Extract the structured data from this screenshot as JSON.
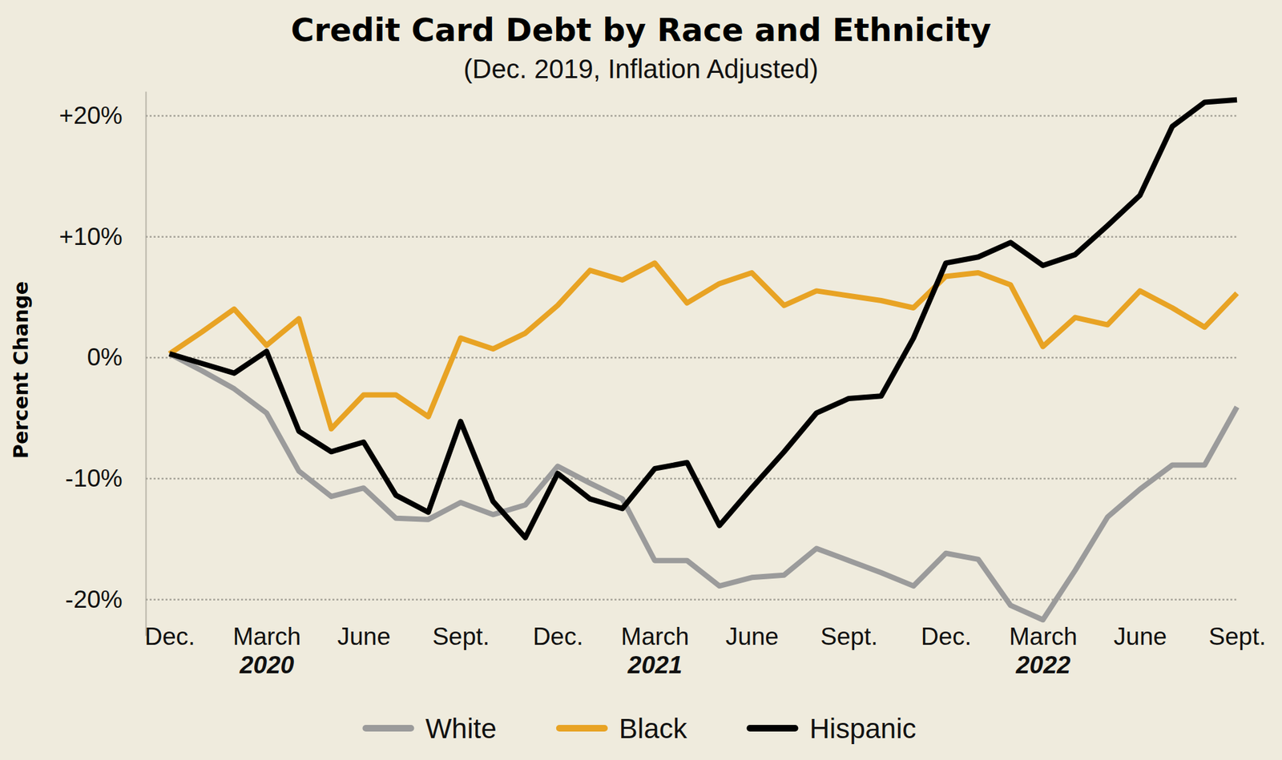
{
  "chart_data": {
    "type": "line",
    "title": "Credit Card Debt by Race and Ethnicity",
    "subtitle": "(Dec. 2019, Inflation Adjusted)",
    "y_label": "Percent Change",
    "categories": [
      "Dec.",
      null,
      null,
      "March 2020",
      null,
      null,
      "June",
      null,
      null,
      "Sept.",
      null,
      null,
      "Dec.",
      null,
      null,
      "March 2021",
      null,
      null,
      "June",
      null,
      null,
      "Sept.",
      null,
      null,
      "Dec.",
      null,
      null,
      "March 2022",
      null,
      null,
      "June",
      null,
      null,
      "Sept."
    ],
    "series": [
      {
        "name": "White",
        "color": "#9b9b9b",
        "values": [
          0.3,
          -1.1,
          -2.6,
          -4.6,
          -9.4,
          -11.5,
          -10.8,
          -13.3,
          -13.4,
          -12.0,
          -13.0,
          -12.2,
          -9.0,
          -10.4,
          -11.7,
          -16.8,
          -16.8,
          -18.9,
          -18.2,
          -18.0,
          -15.8,
          -16.8,
          -17.8,
          -18.9,
          -16.2,
          -16.7,
          -20.5,
          -21.7,
          -17.6,
          -13.2,
          -10.9,
          -8.9,
          -8.9,
          -4.1
        ]
      },
      {
        "name": "Black",
        "color": "#e8a324",
        "values": [
          0.3,
          2.1,
          4.0,
          1.0,
          3.2,
          -5.9,
          -3.1,
          -3.1,
          -4.9,
          1.6,
          0.7,
          2.0,
          4.3,
          7.2,
          6.4,
          7.8,
          4.5,
          6.1,
          7.0,
          4.3,
          5.5,
          5.1,
          4.7,
          4.1,
          6.7,
          7.0,
          6.0,
          0.9,
          3.3,
          2.7,
          5.5,
          4.1,
          2.5,
          5.3
        ]
      },
      {
        "name": "Hispanic",
        "color": "#000000",
        "values": [
          0.3,
          -0.5,
          -1.3,
          0.5,
          -6.1,
          -7.8,
          -7.0,
          -11.4,
          -12.8,
          -5.3,
          -11.9,
          -14.9,
          -9.6,
          -11.7,
          -12.5,
          -9.2,
          -8.7,
          -13.9,
          -10.8,
          -7.8,
          -4.6,
          -3.4,
          -3.2,
          1.6,
          7.8,
          8.3,
          9.5,
          7.6,
          8.5,
          10.9,
          13.4,
          19.1,
          21.1,
          21.3
        ]
      }
    ],
    "ylim": [
      -23,
      22
    ],
    "yticks": [
      {
        "value": 20,
        "label": "+20%"
      },
      {
        "value": 10,
        "label": "+10%"
      },
      {
        "value": 0,
        "label": "0%"
      },
      {
        "value": -10,
        "label": "-10%"
      },
      {
        "value": -20,
        "label": "-20%"
      }
    ],
    "grid": true,
    "legend": "bottom"
  }
}
